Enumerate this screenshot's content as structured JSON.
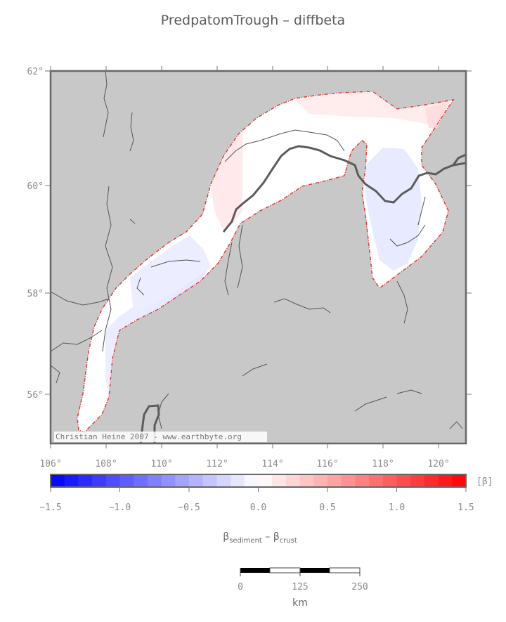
{
  "title": "PredpatomTrough – diffbeta",
  "credit": "Christian Heine 2007 - www.earthbyte.org",
  "map": {
    "lat_labels": [
      "62°",
      "60°",
      "58°",
      "56°"
    ],
    "lon_labels": [
      "106°",
      "108°",
      "110°",
      "112°",
      "114°",
      "116°",
      "118°",
      "120°"
    ],
    "land_color": "#c8c8c8",
    "outline_color": "#e03a3a"
  },
  "colorbar": {
    "unit": "[β]",
    "tick_labels": [
      "−1.5",
      "−1.0",
      "−0.5",
      "0.0",
      "0.5",
      "1.0",
      "1.5"
    ],
    "range": [
      -1.5,
      1.5
    ],
    "low_color": "#0000ff",
    "high_color": "#ff0000"
  },
  "legend": {
    "beta": "β",
    "sub_sediment": "sediment",
    "minus": " – ",
    "sub_crust": "crust"
  },
  "scalebar": {
    "labels": [
      "0",
      "125",
      "250"
    ],
    "unit": "km"
  }
}
